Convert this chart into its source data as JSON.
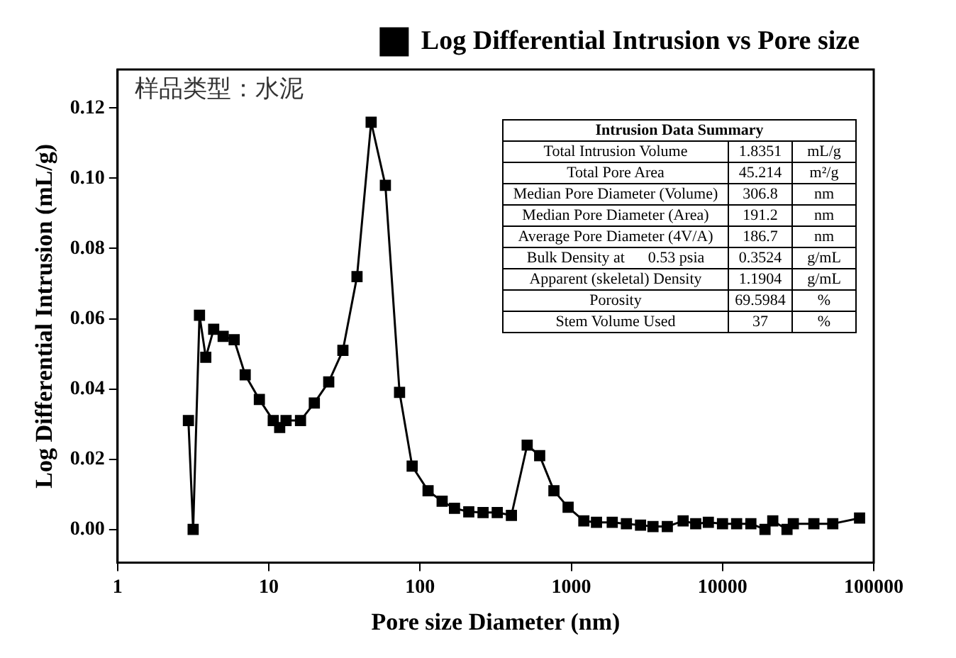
{
  "chart_data": {
    "type": "line",
    "title": "样品类型：水泥",
    "xlabel": "Pore size Diameter (nm)",
    "ylabel": "Log Differential Intrusion (mL/g)",
    "log": "x",
    "xlim": [
      1,
      100000
    ],
    "xticks": [
      1,
      10,
      100,
      1000,
      10000,
      100000
    ],
    "ylim": [
      -0.0095,
      0.131
    ],
    "yticks": [
      {
        "value": 0,
        "label": "0.00"
      },
      {
        "value": 0.02,
        "label": "0.02"
      },
      {
        "value": 0.04,
        "label": "0.04"
      },
      {
        "value": 0.06,
        "label": "0.06"
      },
      {
        "value": 0.08,
        "label": "0.08"
      },
      {
        "value": 0.1,
        "label": "0.10"
      },
      {
        "value": 0.12,
        "label": "0.12"
      }
    ],
    "grid": false,
    "legend": "top right",
    "marker": "square",
    "line_style": "solid",
    "series": [
      {
        "name": "Log Differential Intrusion vs Pore size",
        "color": "#000000",
        "x": [
          2.94,
          3.16,
          3.48,
          3.83,
          4.32,
          4.99,
          5.9,
          6.98,
          8.66,
          10.7,
          11.8,
          13.0,
          16.2,
          20,
          24.9,
          30.9,
          38.3,
          47.5,
          59,
          73.2,
          88.7,
          113,
          140,
          169,
          210,
          261,
          324,
          402,
          511,
          618,
          768,
          953,
          1211,
          1468,
          1866,
          2316,
          2871,
          3470,
          4316,
          5492,
          6650,
          8060,
          10000,
          12400,
          15400,
          19100,
          21500,
          26700,
          29400,
          40200,
          53600,
          80600
        ],
        "values": [
          0.031,
          0,
          0.061,
          0.049,
          0.057,
          0.055,
          0.054,
          0.044,
          0.037,
          0.031,
          0.029,
          0.031,
          0.031,
          0.036,
          0.042,
          0.051,
          0.072,
          0.116,
          0.098,
          0.039,
          0.018,
          0.011,
          0.008,
          0.006,
          0.005,
          0.0048,
          0.0048,
          0.004,
          0.024,
          0.021,
          0.011,
          0.0063,
          0.0024,
          0.002,
          0.002,
          0.0016,
          0.0012,
          0.0008,
          0.0008,
          0.0024,
          0.0016,
          0.002,
          0.0016,
          0.0016,
          0.0016,
          0,
          0.0024,
          0,
          0.0016,
          0.0016,
          0.0016,
          0.0032
        ]
      }
    ],
    "annotations": [
      "Intrusion Data Summary",
      "Total Intrusion Volume",
      "1.8351",
      "mL/g",
      "Total Pore Area",
      "45.214",
      "m²/g",
      "Median Pore Diameter (Volume)",
      "306.8",
      "nm",
      "Median Pore Diameter (Area)",
      "191.2",
      "nm",
      "Average Pore Diameter (4V/A)",
      "186.7",
      "nm",
      "Bulk Density at      0.53 psia",
      "0.3524",
      "g/mL",
      "Apparent (skeletal) Density",
      "1.1904",
      "g/mL",
      "Porosity",
      "69.5984",
      "%",
      "Stem Volume Used",
      "37",
      "%"
    ]
  }
}
